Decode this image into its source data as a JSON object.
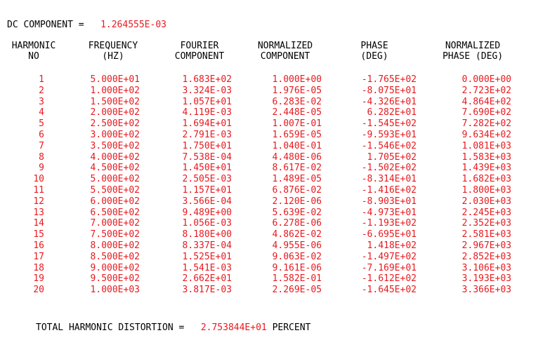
{
  "dc": {
    "label": "DC COMPONENT =",
    "value": "1.264555E-03"
  },
  "headers": [
    {
      "l1": "HARMONIC",
      "l2": "NO"
    },
    {
      "l1": "FREQUENCY",
      "l2": "(HZ)"
    },
    {
      "l1": "FOURIER",
      "l2": "COMPONENT"
    },
    {
      "l1": "NORMALIZED",
      "l2": "COMPONENT"
    },
    {
      "l1": "PHASE",
      "l2": "(DEG)"
    },
    {
      "l1": "NORMALIZED",
      "l2": "PHASE (DEG)"
    }
  ],
  "rows": [
    [
      "1",
      "5.000E+01",
      "1.683E+02",
      "1.000E+00",
      "-1.765E+02",
      "0.000E+00"
    ],
    [
      "2",
      "1.000E+02",
      "3.324E-03",
      "1.976E-05",
      "-8.075E+01",
      "2.723E+02"
    ],
    [
      "3",
      "1.500E+02",
      "1.057E+01",
      "6.283E-02",
      "-4.326E+01",
      "4.864E+02"
    ],
    [
      "4",
      "2.000E+02",
      "4.119E-03",
      "2.448E-05",
      "6.282E+01",
      "7.690E+02"
    ],
    [
      "5",
      "2.500E+02",
      "1.694E+01",
      "1.007E-01",
      "-1.545E+02",
      "7.282E+02"
    ],
    [
      "6",
      "3.000E+02",
      "2.791E-03",
      "1.659E-05",
      "-9.593E+01",
      "9.634E+02"
    ],
    [
      "7",
      "3.500E+02",
      "1.750E+01",
      "1.040E-01",
      "-1.546E+02",
      "1.081E+03"
    ],
    [
      "8",
      "4.000E+02",
      "7.538E-04",
      "4.480E-06",
      "1.705E+02",
      "1.583E+03"
    ],
    [
      "9",
      "4.500E+02",
      "1.450E+01",
      "8.617E-02",
      "-1.502E+02",
      "1.439E+03"
    ],
    [
      "10",
      "5.000E+02",
      "2.505E-03",
      "1.489E-05",
      "-8.314E+01",
      "1.682E+03"
    ],
    [
      "11",
      "5.500E+02",
      "1.157E+01",
      "6.876E-02",
      "-1.416E+02",
      "1.800E+03"
    ],
    [
      "12",
      "6.000E+02",
      "3.566E-04",
      "2.120E-06",
      "-8.903E+01",
      "2.030E+03"
    ],
    [
      "13",
      "6.500E+02",
      "9.489E+00",
      "5.639E-02",
      "-4.973E+01",
      "2.245E+03"
    ],
    [
      "14",
      "7.000E+02",
      "1.056E-03",
      "6.278E-06",
      "-1.193E+02",
      "2.352E+03"
    ],
    [
      "15",
      "7.500E+02",
      "8.180E+00",
      "4.862E-02",
      "-6.695E+01",
      "2.581E+03"
    ],
    [
      "16",
      "8.000E+02",
      "8.337E-04",
      "4.955E-06",
      "1.418E+02",
      "2.967E+03"
    ],
    [
      "17",
      "8.500E+02",
      "1.525E+01",
      "9.063E-02",
      "-1.497E+02",
      "2.852E+03"
    ],
    [
      "18",
      "9.000E+02",
      "1.541E-03",
      "9.161E-06",
      "-7.169E+01",
      "3.106E+03"
    ],
    [
      "19",
      "9.500E+02",
      "2.662E+01",
      "1.582E-01",
      "-1.612E+02",
      "3.193E+03"
    ],
    [
      "20",
      "1.000E+03",
      "3.817E-03",
      "2.269E-05",
      "-1.645E+02",
      "3.366E+03"
    ]
  ],
  "thd": {
    "label": "TOTAL HARMONIC DISTORTION =",
    "value": "2.753844E+01",
    "unit": "PERCENT"
  },
  "colors": {
    "value": "#e8191e",
    "text": "#000000",
    "background": "#ffffff"
  }
}
